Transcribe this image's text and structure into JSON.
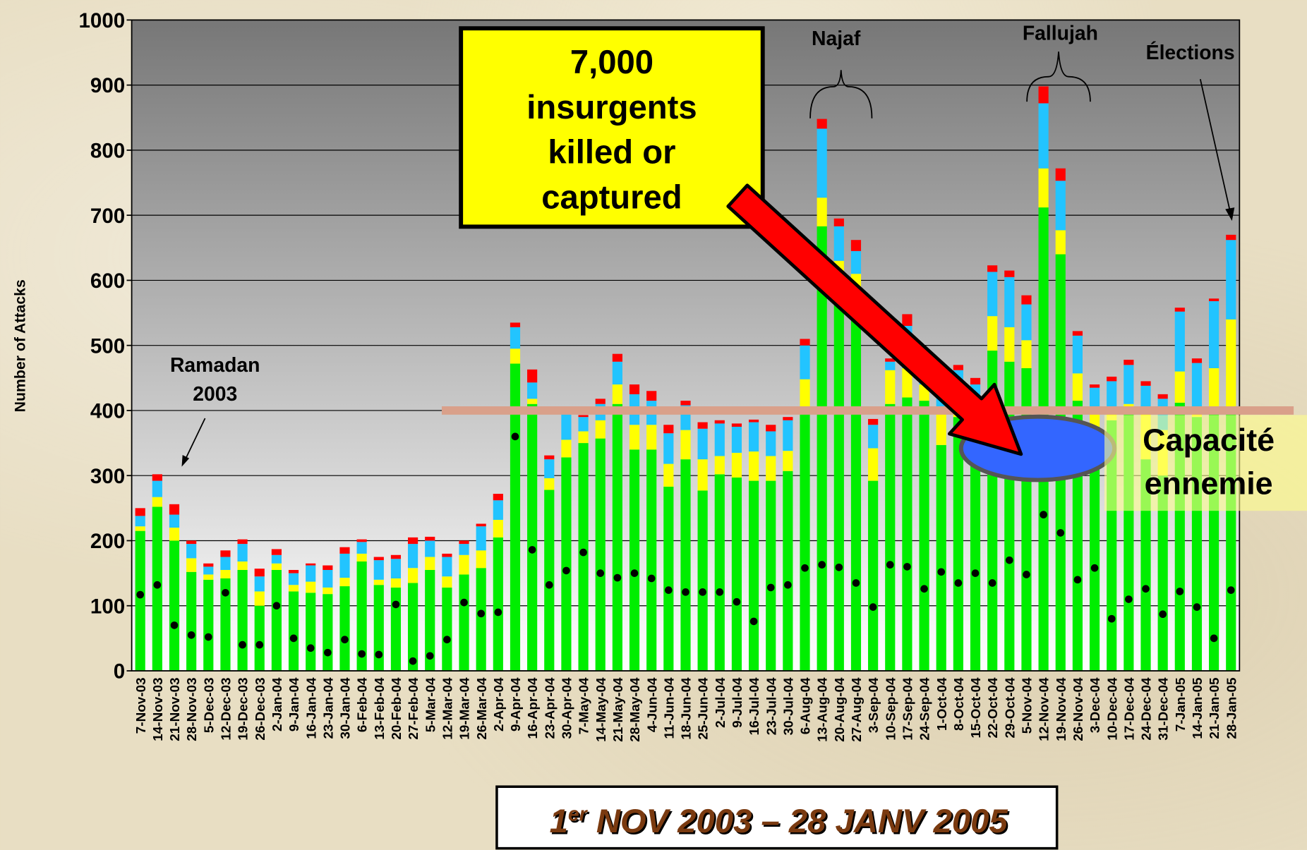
{
  "chart_data": {
    "type": "bar",
    "stacked": true,
    "y_label": "Number of Attacks",
    "categories": [
      "7-Nov-03",
      "14-Nov-03",
      "21-Nov-03",
      "28-Nov-03",
      "5-Dec-03",
      "12-Dec-03",
      "19-Dec-03",
      "26-Dec-03",
      "2-Jan-04",
      "9-Jan-04",
      "16-Jan-04",
      "23-Jan-04",
      "30-Jan-04",
      "6-Feb-04",
      "13-Feb-04",
      "20-Feb-04",
      "27-Feb-04",
      "5-Mar-04",
      "12-Mar-04",
      "19-Mar-04",
      "26-Mar-04",
      "2-Apr-04",
      "9-Apr-04",
      "16-Apr-04",
      "23-Apr-04",
      "30-Apr-04",
      "7-May-04",
      "14-May-04",
      "21-May-04",
      "28-May-04",
      "4-Jun-04",
      "11-Jun-04",
      "18-Jun-04",
      "25-Jun-04",
      "2-Jul-04",
      "9-Jul-04",
      "16-Jul-04",
      "23-Jul-04",
      "30-Jul-04",
      "6-Aug-04",
      "13-Aug-04",
      "20-Aug-04",
      "27-Aug-04",
      "3-Sep-04",
      "10-Sep-04",
      "17-Sep-04",
      "24-Sep-04",
      "1-Oct-04",
      "8-Oct-04",
      "15-Oct-04",
      "22-Oct-04",
      "29-Oct-04",
      "5-Nov-04",
      "12-Nov-04",
      "19-Nov-04",
      "26-Nov-04",
      "3-Dec-04",
      "10-Dec-04",
      "17-Dec-04",
      "24-Dec-04",
      "31-Dec-04",
      "7-Jan-05",
      "14-Jan-05",
      "21-Jan-05",
      "28-Jan-05"
    ],
    "series": [
      {
        "color": "#00ee00",
        "values": [
          215,
          252,
          200,
          152,
          140,
          142,
          155,
          100,
          155,
          122,
          120,
          118,
          130,
          168,
          132,
          128,
          135,
          155,
          128,
          148,
          158,
          205,
          472,
          410,
          278,
          328,
          350,
          357,
          410,
          340,
          340,
          283,
          325,
          277,
          302,
          297,
          292,
          292,
          307,
          400,
          683,
          570,
          540,
          292,
          410,
          420,
          415,
          347,
          390,
          380,
          492,
          475,
          465,
          712,
          640,
          415,
          375,
          385,
          405,
          325,
          300,
          412,
          390,
          395,
          405
        ]
      },
      {
        "color": "#ffff00",
        "values": [
          7,
          15,
          20,
          21,
          8,
          13,
          13,
          22,
          10,
          10,
          17,
          10,
          13,
          12,
          8,
          14,
          23,
          20,
          17,
          30,
          27,
          27,
          23,
          8,
          18,
          27,
          18,
          28,
          30,
          38,
          38,
          35,
          45,
          48,
          28,
          38,
          45,
          38,
          31,
          48,
          44,
          60,
          70,
          50,
          52,
          45,
          25,
          53,
          30,
          30,
          53,
          53,
          43,
          60,
          37,
          42,
          25,
          10,
          5,
          70,
          70,
          48,
          10,
          70,
          135
        ]
      },
      {
        "color": "#22c4ff",
        "values": [
          16,
          25,
          20,
          22,
          12,
          20,
          27,
          23,
          13,
          18,
          25,
          27,
          37,
          18,
          30,
          30,
          37,
          25,
          30,
          17,
          37,
          30,
          33,
          25,
          29,
          40,
          22,
          25,
          35,
          47,
          37,
          47,
          38,
          47,
          50,
          40,
          45,
          38,
          47,
          52,
          106,
          53,
          35,
          36,
          13,
          65,
          30,
          30,
          42,
          30,
          68,
          77,
          55,
          100,
          76,
          58,
          35,
          50,
          60,
          43,
          48,
          92,
          73,
          103,
          122
        ]
      },
      {
        "color": "#ff0000",
        "values": [
          12,
          10,
          16,
          5,
          5,
          10,
          7,
          12,
          9,
          5,
          3,
          7,
          10,
          4,
          5,
          6,
          10,
          6,
          5,
          5,
          4,
          10,
          7,
          20,
          6,
          5,
          3,
          8,
          12,
          15,
          15,
          13,
          7,
          10,
          5,
          5,
          4,
          10,
          5,
          10,
          15,
          12,
          17,
          9,
          5,
          18,
          10,
          10,
          8,
          10,
          10,
          10,
          14,
          26,
          19,
          7,
          5,
          7,
          8,
          7,
          7,
          6,
          7,
          4,
          8
        ]
      }
    ],
    "points": {
      "color": "#000000",
      "values": [
        117,
        132,
        70,
        55,
        52,
        120,
        40,
        40,
        100,
        50,
        35,
        28,
        48,
        26,
        25,
        102,
        15,
        23,
        48,
        105,
        88,
        90,
        360,
        186,
        132,
        154,
        182,
        150,
        143,
        150,
        142,
        124,
        121,
        121,
        121,
        106,
        76,
        128,
        132,
        158,
        163,
        159,
        135,
        98,
        163,
        160,
        126,
        152,
        135,
        150,
        135,
        170,
        148,
        240,
        212,
        140,
        158,
        80,
        110,
        126,
        87,
        122,
        98,
        50,
        124
      ]
    },
    "ylim": [
      0,
      1000
    ],
    "yticks": [
      0,
      100,
      200,
      300,
      400,
      500,
      600,
      700,
      800,
      900,
      1000
    ],
    "grid": true,
    "reference_line": {
      "value": 400,
      "color": "#d9a08a"
    },
    "annotations": {
      "ramadan": [
        "Ramadan",
        "2003"
      ],
      "najaf": "Najaf",
      "fallujah": "Fallujah",
      "elections": "Élections",
      "callout": [
        "7,000",
        "insurgents",
        "killed or",
        "captured"
      ],
      "capacity": [
        "Capacité",
        "ennemie"
      ]
    },
    "period": {
      "number": "1",
      "superscript": "er",
      "text": "NOV 2003 – 28 JANV 2005"
    }
  }
}
